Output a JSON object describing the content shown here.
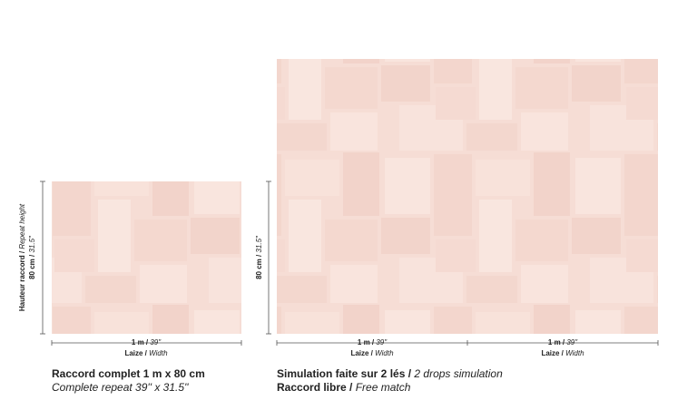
{
  "left": {
    "height": [
      {
        "fr": "Hauteur raccord /",
        "en": "Repeat height"
      },
      {
        "fr": "80 cm /",
        "en": "31.5\""
      }
    ],
    "widths": [
      {
        "value_fr": "1 m /",
        "value_en": "39\"",
        "label_fr": "Laize /",
        "label_en": "Width"
      }
    ],
    "caption": [
      {
        "bold": "Raccord complet 1 m x 80 cm",
        "italic": ""
      },
      {
        "bold": "",
        "italic": "Complete repeat 39'' x 31.5''"
      }
    ]
  },
  "right": {
    "height": [
      {
        "fr": "80 cm /",
        "en": "31.5\""
      }
    ],
    "widths": [
      {
        "value_fr": "1 m /",
        "value_en": "39\"",
        "label_fr": "Laize /",
        "label_en": "Width"
      },
      {
        "value_fr": "1 m /",
        "value_en": "39\"",
        "label_fr": "Laize /",
        "label_en": "Width"
      }
    ],
    "caption": [
      {
        "bold": "Simulation faite sur 2 lés /",
        "italic": "2 drops simulation"
      },
      {
        "bold": "Raccord libre /",
        "italic": "Free match"
      }
    ]
  }
}
